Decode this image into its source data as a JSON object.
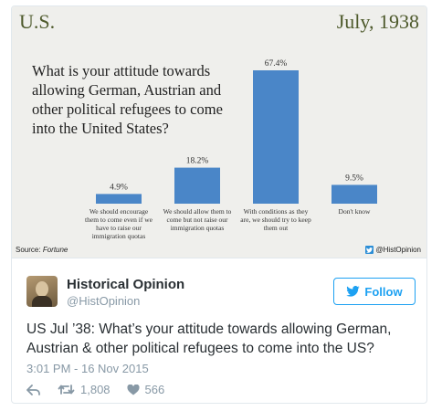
{
  "chart": {
    "region": "U.S.",
    "date": "July, 1938",
    "question_lines": [
      "What is your attitude towards",
      "allowing German, Austrian and",
      "other political refugees to come",
      "into the United States?"
    ],
    "source_label": "Source:",
    "source_name": "Fortune",
    "handle_tag": "@HistOpinion"
  },
  "chart_data": {
    "type": "bar",
    "title": "What is your attitude towards allowing German, Austrian and other political refugees to come into the United States?",
    "categories": [
      "We should encourage them to come even if we have to raise our immigration quotas",
      "We should allow them to come but not raise our immigration quotas",
      "With conditions as they are, we should try to keep them out",
      "Don't know"
    ],
    "category_lines": [
      [
        "We should encourage",
        "them to come even if we",
        "have to raise our",
        "immigration quotas"
      ],
      [
        "We should allow them to",
        "come but not raise our",
        "immigration quotas"
      ],
      [
        "With conditions as they",
        "are, we should try to keep",
        "them out"
      ],
      [
        "Don't know"
      ]
    ],
    "values": [
      4.9,
      18.2,
      67.4,
      9.5
    ],
    "data_labels": [
      "4.9%",
      "18.2%",
      "67.4%",
      "9.5%"
    ],
    "ylim": [
      0,
      67.4
    ],
    "grid": false,
    "legend": "none",
    "bar_color": "#4a86c8"
  },
  "tweet": {
    "name": "Historical Opinion",
    "screen_name": "@HistOpinion",
    "follow_label": "Follow",
    "text": "US Jul ’38: What’s your attitude towards allowing German, Austrian & other political refugees to come into the US?",
    "timestamp": "3:01 PM - 16 Nov 2015",
    "retweets": "1,808",
    "likes": "566"
  },
  "colors": {
    "accent": "#1da1f2",
    "muted": "#8899a6",
    "panel_bg": "#efefec",
    "header_text": "#4e5a2c"
  }
}
